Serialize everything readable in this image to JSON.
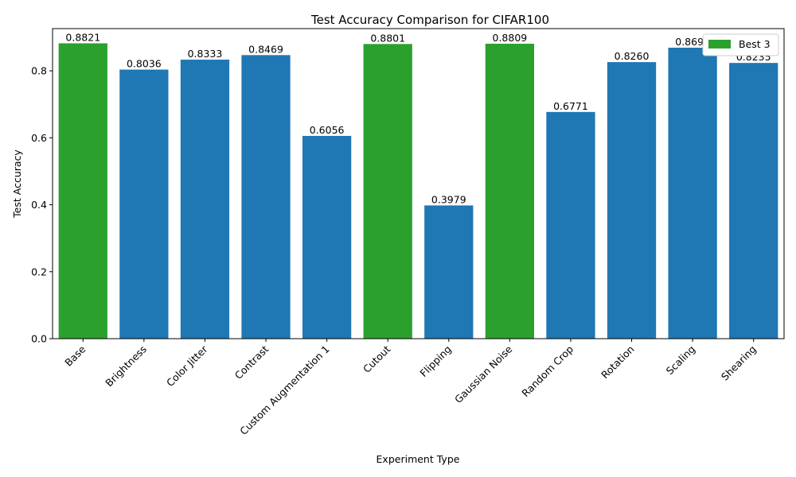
{
  "chart_data": {
    "type": "bar",
    "title": "Test Accuracy Comparison for CIFAR100",
    "xlabel": "Experiment Type",
    "ylabel": "Test Accuracy",
    "categories": [
      "Base",
      "Brightness",
      "Color Jitter",
      "Contrast",
      "Custom Augmentation 1",
      "Cutout",
      "Flipping",
      "Gaussian Noise",
      "Random Crop",
      "Rotation",
      "Scaling",
      "Shearing"
    ],
    "values": [
      0.8821,
      0.8036,
      0.8333,
      0.8469,
      0.6056,
      0.8801,
      0.3979,
      0.8809,
      0.6771,
      0.826,
      0.869,
      0.8235
    ],
    "value_labels": [
      "0.8821",
      "0.8036",
      "0.8333",
      "0.8469",
      "0.6056",
      "0.8801",
      "0.3979",
      "0.8809",
      "0.6771",
      "0.8260",
      "0.8690",
      "0.8235"
    ],
    "highlighted": [
      true,
      false,
      false,
      false,
      false,
      true,
      false,
      true,
      false,
      false,
      false,
      false
    ],
    "colors": {
      "default": "#1f77b4",
      "highlight": "#2ca02c"
    },
    "ylim": [
      0,
      0.926
    ],
    "yticks": [
      0,
      0.2,
      0.4,
      0.6,
      0.8
    ],
    "ytick_labels": [
      "0.0",
      "0.2",
      "0.4",
      "0.6",
      "0.8"
    ],
    "grid": false,
    "legend": {
      "position": "top-right",
      "entries": [
        {
          "label": "Best 3",
          "color": "#2ca02c"
        }
      ]
    }
  }
}
